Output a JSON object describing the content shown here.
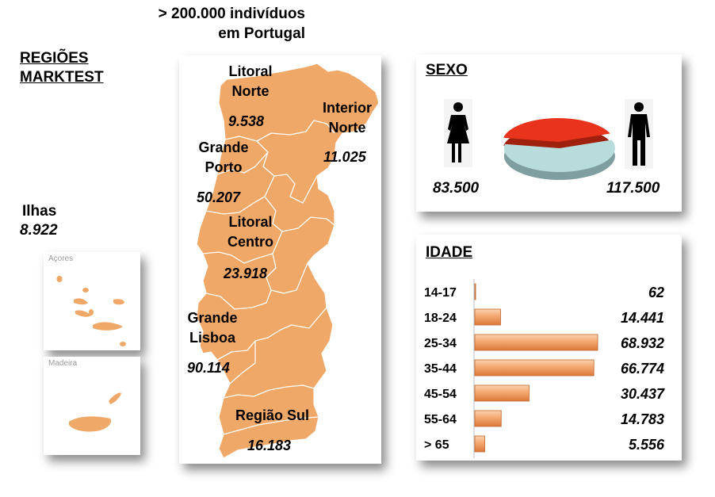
{
  "header": {
    "line1": "> 200.000 indivíduos",
    "line2": "em Portugal"
  },
  "regions_title": {
    "line1": "REGIÕES",
    "line2": "MARKTEST"
  },
  "regions": [
    {
      "name1": "Litoral",
      "name2": "Norte",
      "value": "9.538"
    },
    {
      "name1": "Interior",
      "name2": "Norte",
      "value": "11.025"
    },
    {
      "name1": "Grande",
      "name2": "Porto",
      "value": "50.207"
    },
    {
      "name1": "Litoral",
      "name2": "Centro",
      "value": "23.918"
    },
    {
      "name1": "Grande",
      "name2": "Lisboa",
      "value": "90.114"
    },
    {
      "name1": "Região Sul",
      "name2": "",
      "value": "16.183"
    }
  ],
  "islands": {
    "label": "Ilhas",
    "value": "8.922",
    "azores": "Açores",
    "madeira": "Madeira"
  },
  "sexo": {
    "title": "SEXO",
    "female_value": "83.500",
    "male_value": "117.500"
  },
  "idade": {
    "title": "IDADE"
  },
  "colors": {
    "map": "#f0a868",
    "female": "#e8341c",
    "male": "#b8dcdc",
    "bar": "#f2a36a"
  },
  "chart_data": [
    {
      "type": "pie",
      "title": "SEXO",
      "categories": [
        "Feminino",
        "Masculino"
      ],
      "values": [
        83500,
        117500
      ],
      "value_labels": [
        "83.500",
        "117.500"
      ]
    },
    {
      "type": "bar",
      "orientation": "horizontal",
      "title": "IDADE",
      "categories": [
        "14-17",
        "18-24",
        "25-34",
        "35-44",
        "45-54",
        "55-64",
        "> 65"
      ],
      "values": [
        62,
        14441,
        68932,
        66774,
        30437,
        14783,
        5556
      ],
      "value_labels": [
        "62",
        "14.441",
        "68.932",
        "66.774",
        "30.437",
        "14.783",
        "5.556"
      ]
    }
  ]
}
